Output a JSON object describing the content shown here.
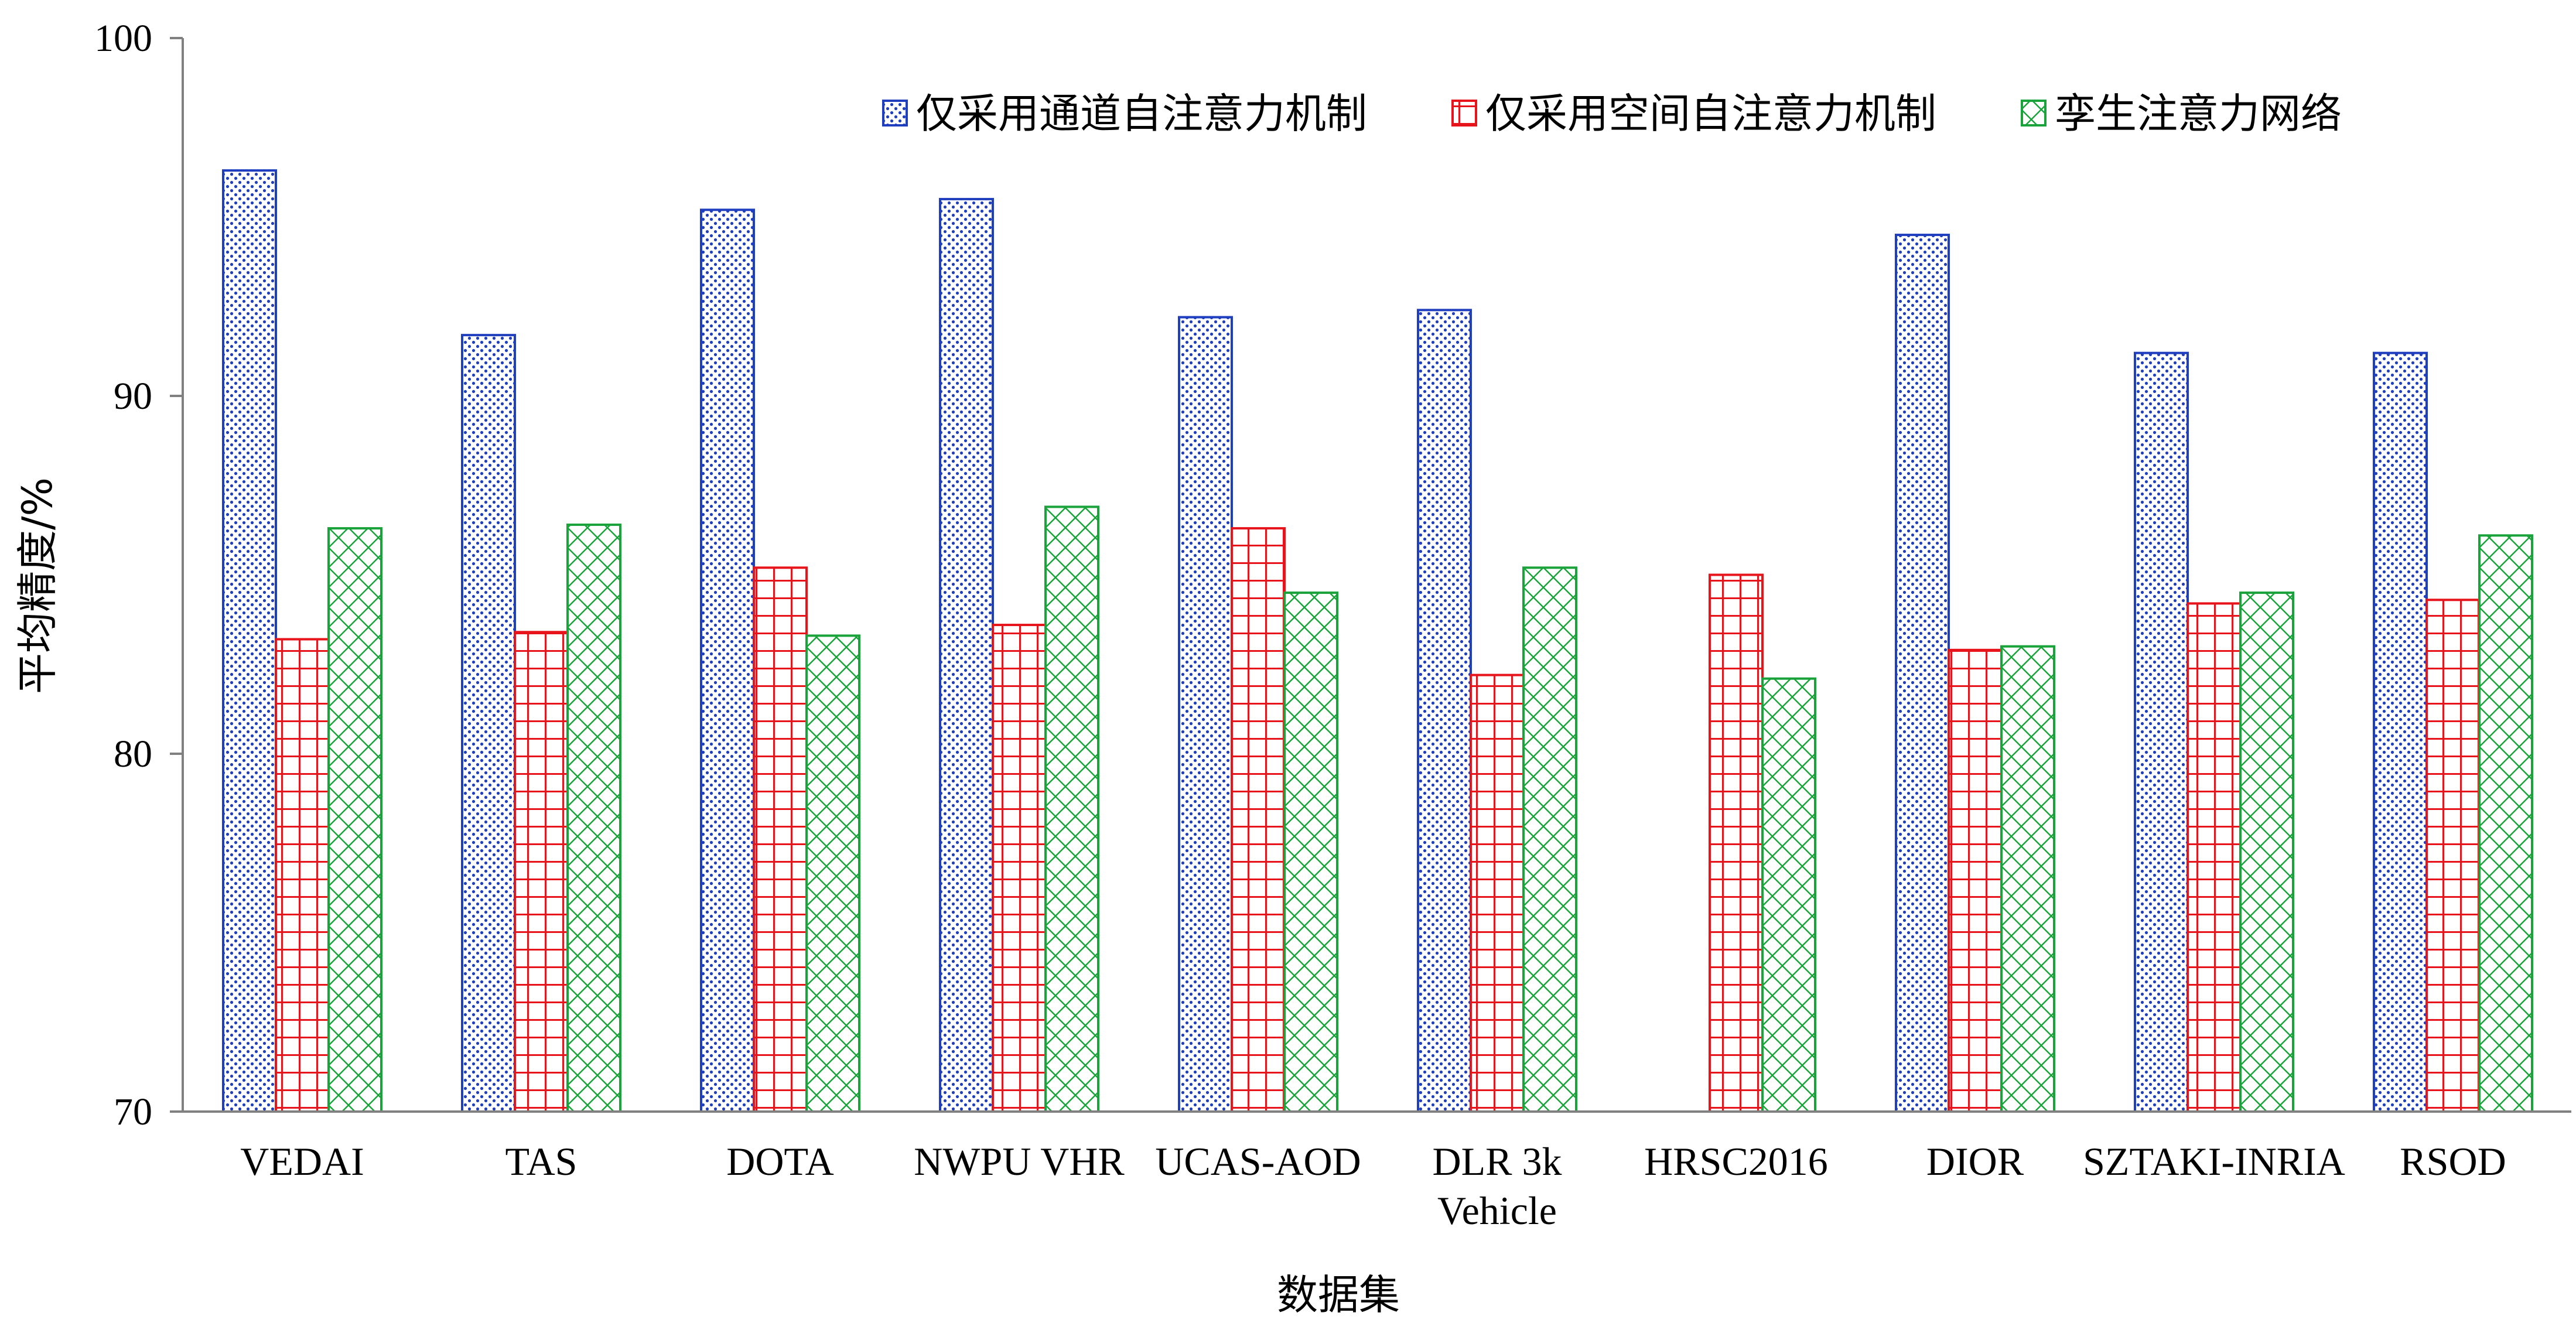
{
  "colors": {
    "series1": "#1f3fbf",
    "series2": "#e8141b",
    "series3": "#1aa33a",
    "axis": "#808080"
  },
  "chart_data": {
    "type": "bar",
    "title": "",
    "xlabel": "数据集",
    "ylabel": "平均精度/%",
    "ylim": [
      70,
      100
    ],
    "yticks": [
      70,
      80,
      90,
      100
    ],
    "grid": false,
    "legend_position": "top-right",
    "categories": [
      "VEDAI",
      "TAS",
      "DOTA",
      "NWPU VHR",
      "UCAS-AOD",
      "DLR 3k Vehicle",
      "HRSC2016",
      "DIOR",
      "SZTAKI-INRIA",
      "RSOD"
    ],
    "category_lines": [
      [
        "VEDAI"
      ],
      [
        "TAS"
      ],
      [
        "DOTA"
      ],
      [
        "NWPU VHR"
      ],
      [
        "UCAS-AOD"
      ],
      [
        "DLR 3k",
        "Vehicle"
      ],
      [
        "HRSC2016"
      ],
      [
        "DIOR"
      ],
      [
        "SZTAKI-INRIA"
      ],
      [
        "RSOD"
      ]
    ],
    "series": [
      {
        "name": "仅采用通道自注意力机制",
        "pattern": "dots",
        "values": [
          96.3,
          91.7,
          95.2,
          95.5,
          92.2,
          92.4,
          70.0,
          94.5,
          91.2,
          91.2
        ]
      },
      {
        "name": "仅采用空间自注意力机制",
        "pattern": "grid",
        "values": [
          83.2,
          83.4,
          85.2,
          83.6,
          86.3,
          82.2,
          85.0,
          82.9,
          84.2,
          84.3
        ]
      },
      {
        "name": "孪生注意力网络",
        "pattern": "crosshatch",
        "values": [
          86.3,
          86.4,
          83.3,
          86.9,
          84.5,
          85.2,
          82.1,
          83.0,
          84.5,
          86.1
        ]
      }
    ]
  }
}
